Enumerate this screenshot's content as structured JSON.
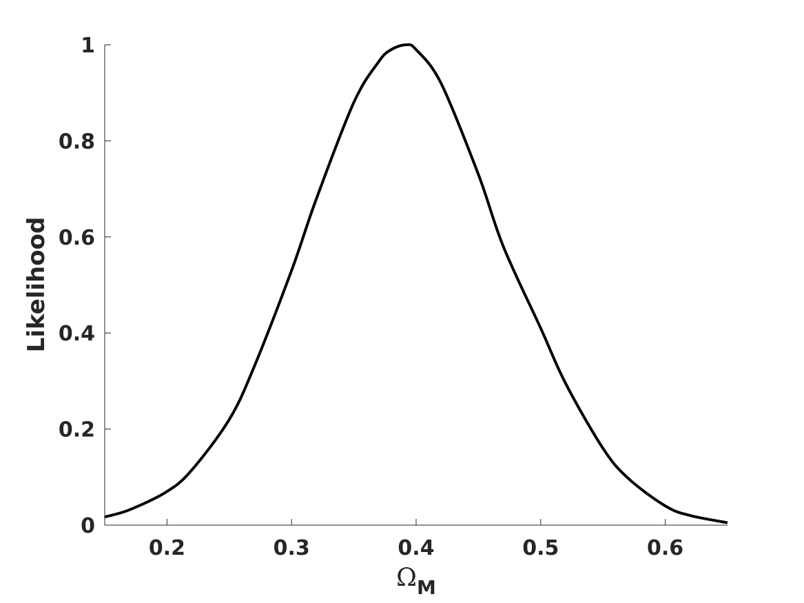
{
  "chart_data": {
    "type": "line",
    "title": "",
    "xlabel": "ΩM",
    "xlabel_symbol": "Ω",
    "xlabel_subscript": "M",
    "ylabel": "Likelihood",
    "xlim": [
      0.15,
      0.65
    ],
    "ylim": [
      0,
      1
    ],
    "xticks": [
      0.2,
      0.3,
      0.4,
      0.5,
      0.6
    ],
    "xtick_labels": [
      "0.2",
      "0.3",
      "0.4",
      "0.5",
      "0.6"
    ],
    "yticks": [
      0,
      0.2,
      0.4,
      0.6,
      0.8,
      1
    ],
    "ytick_labels": [
      "0",
      "0.2",
      "0.4",
      "0.6",
      "0.8",
      "1"
    ],
    "grid": false,
    "series": [
      {
        "color": "#000000",
        "x": [
          0.15,
          0.17,
          0.2,
          0.22,
          0.25,
          0.27,
          0.3,
          0.32,
          0.35,
          0.37,
          0.38,
          0.392,
          0.4,
          0.42,
          0.45,
          0.47,
          0.5,
          0.52,
          0.55,
          0.57,
          0.6,
          0.62,
          0.65
        ],
        "y": [
          0.017,
          0.032,
          0.07,
          0.115,
          0.22,
          0.33,
          0.53,
          0.68,
          0.88,
          0.965,
          0.99,
          1.0,
          0.99,
          0.92,
          0.73,
          0.58,
          0.41,
          0.295,
          0.16,
          0.098,
          0.04,
          0.02,
          0.005
        ]
      }
    ]
  }
}
